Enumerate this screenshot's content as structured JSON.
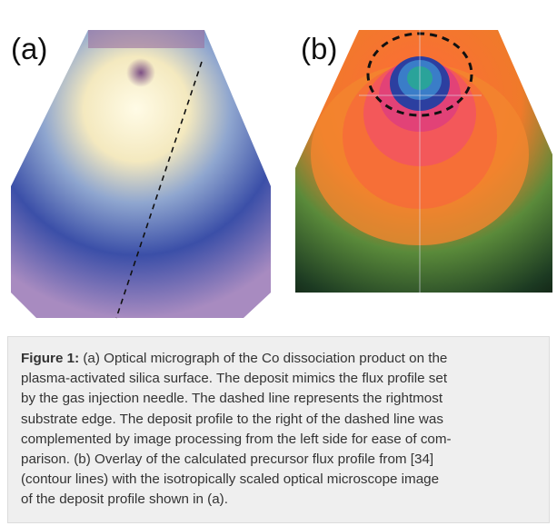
{
  "figure": {
    "panel_labels": [
      "(a)",
      "(b)"
    ],
    "caption": {
      "label": "Figure 1:",
      "lines": [
        " (a) Optical micrograph of the Co dissociation product on the",
        "plasma-activated silica surface. The deposit mimics the flux profile set",
        "by the gas injection needle. The dashed line represents the rightmost",
        "substrate edge. The deposit profile to the right of the dashed line was",
        "complemented by image processing from the left side for ease of com-",
        "parison. (b) Overlay of the calculated precursor flux profile from [34]",
        "(contour lines) with the isotropically scaled optical microscope image",
        "of the deposit profile shown in (a)."
      ]
    }
  }
}
